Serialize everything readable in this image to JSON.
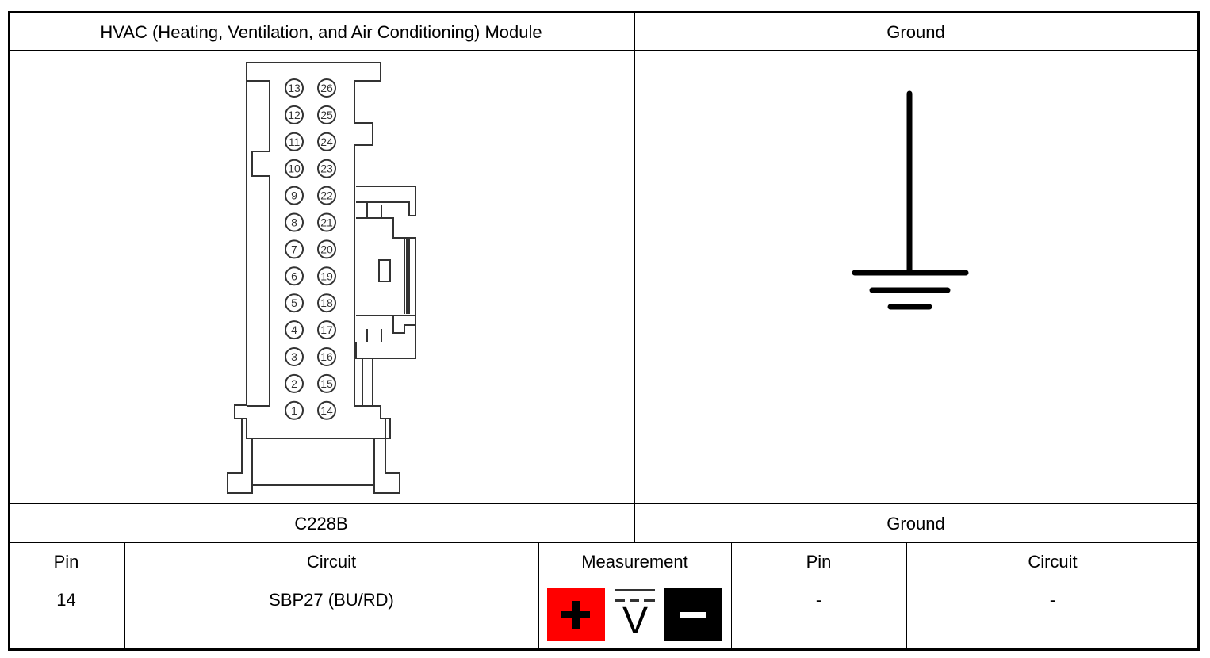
{
  "header": {
    "left_title": "HVAC (Heating, Ventilation, and Air Conditioning) Module",
    "right_title": "Ground"
  },
  "connector": {
    "id": "C228B",
    "pins_left": [
      13,
      12,
      11,
      10,
      9,
      8,
      7,
      6,
      5,
      4,
      3,
      2,
      1
    ],
    "pins_right": [
      26,
      25,
      24,
      23,
      22,
      21,
      20,
      19,
      18,
      17,
      16,
      15,
      14
    ]
  },
  "ground_label": "Ground",
  "table": {
    "columns": [
      "Pin",
      "Circuit",
      "Measurement",
      "Pin",
      "Circuit"
    ],
    "row": {
      "pin": "14",
      "circuit": "SBP27 (BU/RD)",
      "ground_pin": "-",
      "ground_circuit": "-"
    }
  },
  "measurement": {
    "icons": [
      "positive-probe-icon",
      "dc-voltage-icon",
      "negative-probe-icon"
    ],
    "positive_color": "#ff0000",
    "negative_color": "#000000"
  }
}
